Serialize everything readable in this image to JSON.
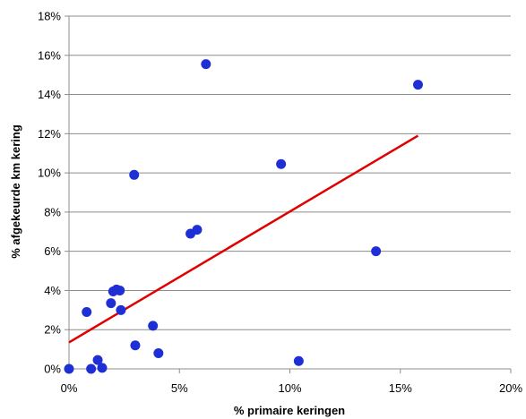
{
  "chart_data": {
    "type": "scatter",
    "title": "",
    "xlabel": "% primaire keringen",
    "ylabel": "% afgekeurde km kering",
    "xlim": [
      0,
      20
    ],
    "ylim": [
      0,
      18
    ],
    "x_ticks": [
      "0%",
      "5%",
      "10%",
      "15%",
      "20%"
    ],
    "y_ticks": [
      "0%",
      "2%",
      "4%",
      "6%",
      "8%",
      "10%",
      "12%",
      "14%",
      "16%",
      "18%"
    ],
    "grid": "horizontal",
    "legend": "none",
    "series": [
      {
        "marker_color": "#1f2fd6",
        "points": [
          [
            0.0,
            0.0
          ],
          [
            0.8,
            2.9
          ],
          [
            1.0,
            0.0
          ],
          [
            1.3,
            0.45
          ],
          [
            1.5,
            0.05
          ],
          [
            1.9,
            3.35
          ],
          [
            2.0,
            3.95
          ],
          [
            2.15,
            4.05
          ],
          [
            2.3,
            4.0
          ],
          [
            2.35,
            3.0
          ],
          [
            2.95,
            9.9
          ],
          [
            3.0,
            1.2
          ],
          [
            3.8,
            2.2
          ],
          [
            4.05,
            0.8
          ],
          [
            5.5,
            6.9
          ],
          [
            5.8,
            7.1
          ],
          [
            6.2,
            15.55
          ],
          [
            9.6,
            10.45
          ],
          [
            10.4,
            0.4
          ],
          [
            13.9,
            6.0
          ],
          [
            15.8,
            14.5
          ]
        ]
      }
    ],
    "trendline": {
      "color": "#e00000",
      "x": [
        0.0,
        15.8
      ],
      "y": [
        1.35,
        11.9
      ]
    }
  }
}
